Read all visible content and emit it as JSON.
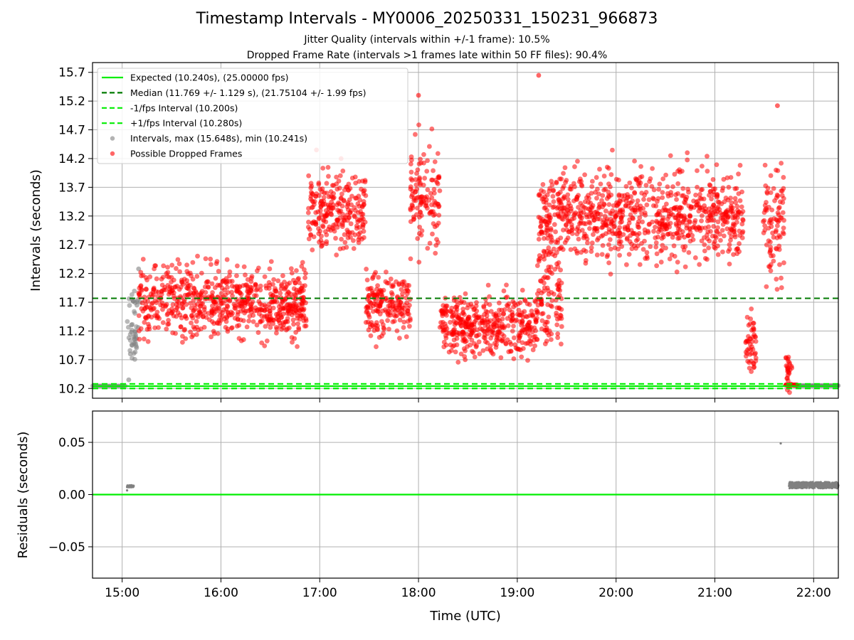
{
  "title": "Timestamp Intervals - MY0006_20250331_150231_966873",
  "subtitle1": "Jitter Quality (intervals within +/-1 frame): 10.5%",
  "subtitle2": "Dropped Frame Rate (intervals >1 frames late within 50 FF files): 90.4%",
  "colors": {
    "expected": "#00ee00",
    "median": "#007a00",
    "fps_band": "#00ee00",
    "intervals": "#808080",
    "dropped": "#ff0000",
    "grid": "#b0b0b0"
  },
  "chart_data": [
    {
      "type": "scatter",
      "ylabel": "Intervals (seconds)",
      "ylim": [
        10.03,
        15.87
      ],
      "yticks": [
        "10.2",
        "10.7",
        "11.2",
        "11.7",
        "12.2",
        "12.7",
        "13.2",
        "13.7",
        "14.2",
        "14.7",
        "15.2",
        "15.7"
      ],
      "xlim": [
        "14:42",
        "22:15"
      ],
      "grid": true,
      "legend_position": "upper-left",
      "legend": [
        "Expected (10.240s), (25.00000 fps)",
        "Median (11.769 +/- 1.129 s), (21.75104 +/- 1.99 fps)",
        "-1/fps Interval (10.200s)",
        "+1/fps Interval (10.280s)",
        "Intervals, max (15.648s), min (10.241s)",
        "Possible Dropped Frames"
      ],
      "lines": {
        "expected": 10.24,
        "median": 11.769,
        "minus_fps": 10.2,
        "plus_fps": 10.28
      },
      "series": [
        {
          "name": "Intervals, max (15.648s), min (10.241s)",
          "segments": [
            {
              "start": "15:02",
              "end": "15:12",
              "value_note": "scattered intervals",
              "points": [
                [
                  "15:04",
                  10.35
                ],
                [
                  "15:05",
                  10.8
                ],
                [
                  "15:06",
                  10.95
                ],
                [
                  "15:07",
                  11.1
                ],
                [
                  "15:08",
                  11.2
                ],
                [
                  "15:09",
                  11.65
                ],
                [
                  "15:10",
                  12.28
                ],
                [
                  "15:11",
                  11.7
                ]
              ]
            }
          ]
        },
        {
          "name": "Possible Dropped Frames",
          "segments": [
            {
              "start": "15:10",
              "end": "16:52",
              "mean": 11.7,
              "spread": 0.55
            },
            {
              "start": "16:53",
              "end": "17:28",
              "mean": 13.3,
              "spread": 0.6
            },
            {
              "start": "17:28",
              "end": "17:55",
              "mean": 11.65,
              "spread": 0.5
            },
            {
              "start": "17:55",
              "end": "18:13",
              "mean": 13.5,
              "spread": 0.8
            },
            {
              "start": "18:13",
              "end": "19:12",
              "mean": 11.3,
              "spread": 0.45
            },
            {
              "start": "19:12",
              "end": "19:27",
              "mean": 11.8,
              "spread": 0.9
            },
            {
              "start": "19:13",
              "end": "21:18",
              "mean": 13.2,
              "spread": 0.7
            },
            {
              "start": "21:18",
              "end": "21:25",
              "mean": 11.0,
              "spread": 0.5
            },
            {
              "start": "21:29",
              "end": "21:42",
              "mean": 13.1,
              "spread": 0.9
            },
            {
              "start": "21:43",
              "end": "21:47",
              "mean": 10.5,
              "spread": 0.3
            }
          ]
        }
      ]
    },
    {
      "type": "scatter",
      "ylabel": "Residuals (seconds)",
      "xlabel": "Time (UTC)",
      "ylim": [
        -0.08,
        0.08
      ],
      "yticks": [
        "0.05",
        "0.00",
        "−0.05"
      ],
      "xticks": [
        "15:00",
        "16:00",
        "17:00",
        "18:00",
        "19:00",
        "20:00",
        "21:00",
        "22:00"
      ],
      "grid": true,
      "zero_line": 0.0,
      "series": [
        {
          "name": "",
          "segments": [
            {
              "start": "15:03",
              "end": "15:07",
              "mean": 0.008,
              "spread": 0.002
            },
            {
              "start": "21:45",
              "end": "22:15",
              "mean": 0.009,
              "spread": 0.006
            },
            {
              "points": [
                [
                  "21:40",
                  0.049
                ],
                [
                  "15:03",
                  0.004
                ]
              ]
            }
          ]
        }
      ]
    }
  ]
}
